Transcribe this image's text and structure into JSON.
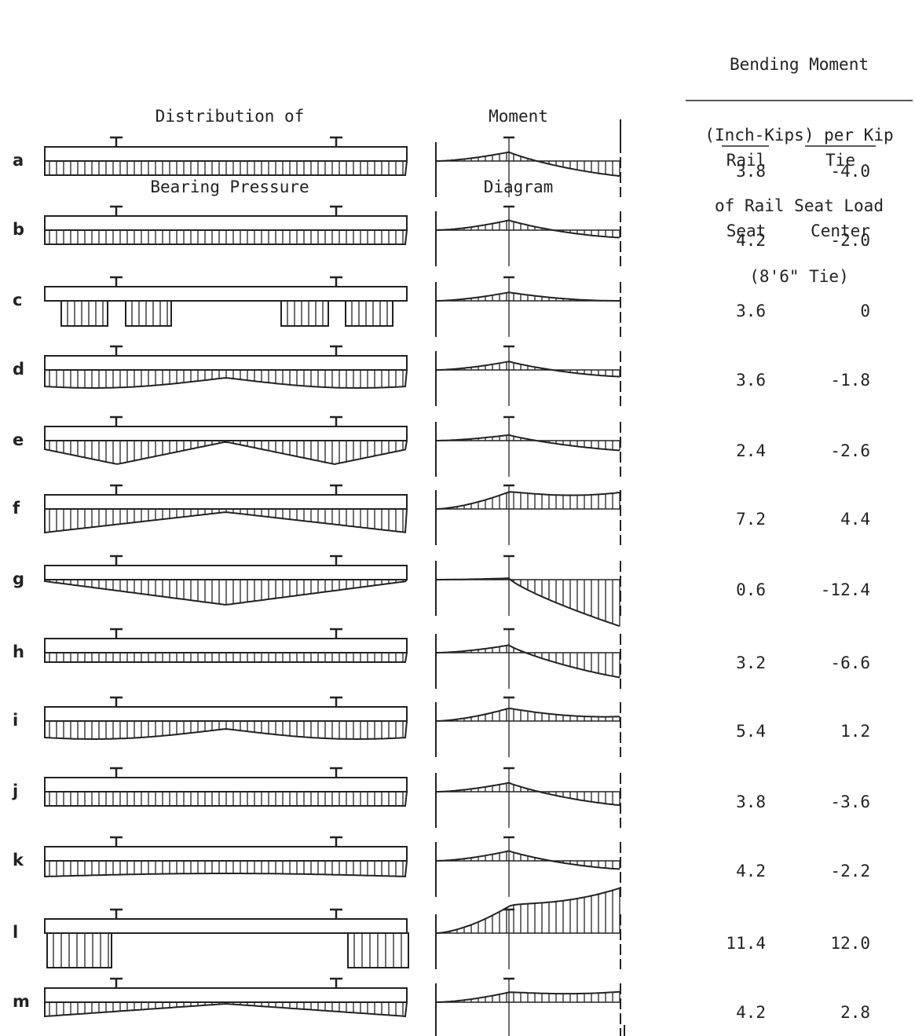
{
  "headers": {
    "distribution": [
      "Distribution of",
      "Bearing Pressure"
    ],
    "moment": [
      "Moment",
      "Diagram"
    ],
    "bending": [
      "Bending Moment",
      "(Inch-Kips) per Kip",
      "of Rail Seat Load",
      "(8'6\" Tie)"
    ],
    "col_rail_seat": [
      "Rail",
      "Seat"
    ],
    "col_tie_center": [
      "Tie",
      "Center"
    ]
  },
  "rows": [
    {
      "letter": "a",
      "pressure": "uniform",
      "rail_seat": "3.8",
      "tie_center": "-4.0"
    },
    {
      "letter": "b",
      "pressure": "uniform-round",
      "rail_seat": "4.2",
      "tie_center": "-2.0"
    },
    {
      "letter": "c",
      "pressure": "blocks",
      "rail_seat": "3.6",
      "tie_center": "0"
    },
    {
      "letter": "d",
      "pressure": "wavy",
      "rail_seat": "3.6",
      "tie_center": "-1.8"
    },
    {
      "letter": "e",
      "pressure": "triangles",
      "rail_seat": "2.4",
      "tie_center": "-2.6"
    },
    {
      "letter": "f",
      "pressure": "ends-heavy",
      "rail_seat": "7.2",
      "tie_center": "4.4"
    },
    {
      "letter": "g",
      "pressure": "center-heavy",
      "rail_seat": "0.6",
      "tie_center": "-12.4"
    },
    {
      "letter": "h",
      "pressure": "uniform-thin",
      "rail_seat": "3.2",
      "tie_center": "-6.6"
    },
    {
      "letter": "i",
      "pressure": "wavy",
      "rail_seat": "5.4",
      "tie_center": "1.2"
    },
    {
      "letter": "j",
      "pressure": "uniform-round",
      "rail_seat": "3.8",
      "tie_center": "-3.6"
    },
    {
      "letter": "k",
      "pressure": "wavy-mild",
      "rail_seat": "4.2",
      "tie_center": "-2.2"
    },
    {
      "letter": "l",
      "pressure": "end-blocks",
      "rail_seat": "11.4",
      "tie_center": "12.0"
    },
    {
      "letter": "m",
      "pressure": "ends-heavy-m",
      "rail_seat": "4.2",
      "tie_center": "2.8"
    }
  ]
}
